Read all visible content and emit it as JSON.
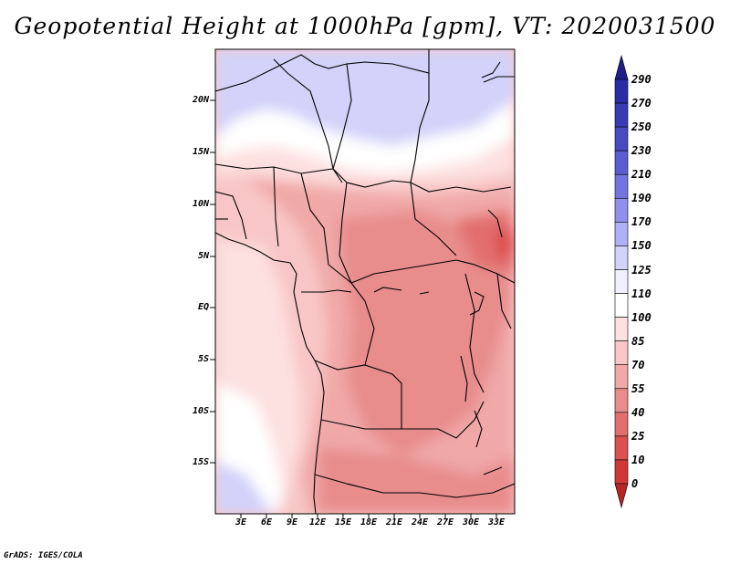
{
  "title": "Geopotential Height at 1000hPa [gpm], VT: 2020031500",
  "credit": "GrADS: IGES/COLA",
  "map": {
    "variable": "Geopotential Height",
    "level": "1000hPa",
    "units": "gpm",
    "valid_time": "2020031500",
    "lat_labels": [
      "20N",
      "15N",
      "10N",
      "5N",
      "EQ",
      "5S",
      "10S",
      "15S"
    ],
    "lon_labels": [
      "3E",
      "6E",
      "9E",
      "12E",
      "15E",
      "18E",
      "21E",
      "24E",
      "27E",
      "30E",
      "33E"
    ]
  },
  "colorbar": {
    "labels": [
      "290",
      "270",
      "250",
      "230",
      "210",
      "190",
      "170",
      "150",
      "125",
      "110",
      "100",
      "85",
      "70",
      "55",
      "40",
      "25",
      "10",
      "0"
    ],
    "colors": [
      "#1e1e8c",
      "#2b2ba6",
      "#3a3ab4",
      "#4a4ac0",
      "#5c5cd2",
      "#7474e0",
      "#9090ec",
      "#b0b0f4",
      "#d2d2fa",
      "#f0f0fe",
      "#ffffff",
      "#fde0e0",
      "#f8c6c6",
      "#f0a8a8",
      "#e88c8c",
      "#e26e6e",
      "#dc5050",
      "#d03838",
      "#b82424"
    ],
    "top_arrow_color": "#1e1e8c",
    "bottom_arrow_color": "#b82424"
  }
}
